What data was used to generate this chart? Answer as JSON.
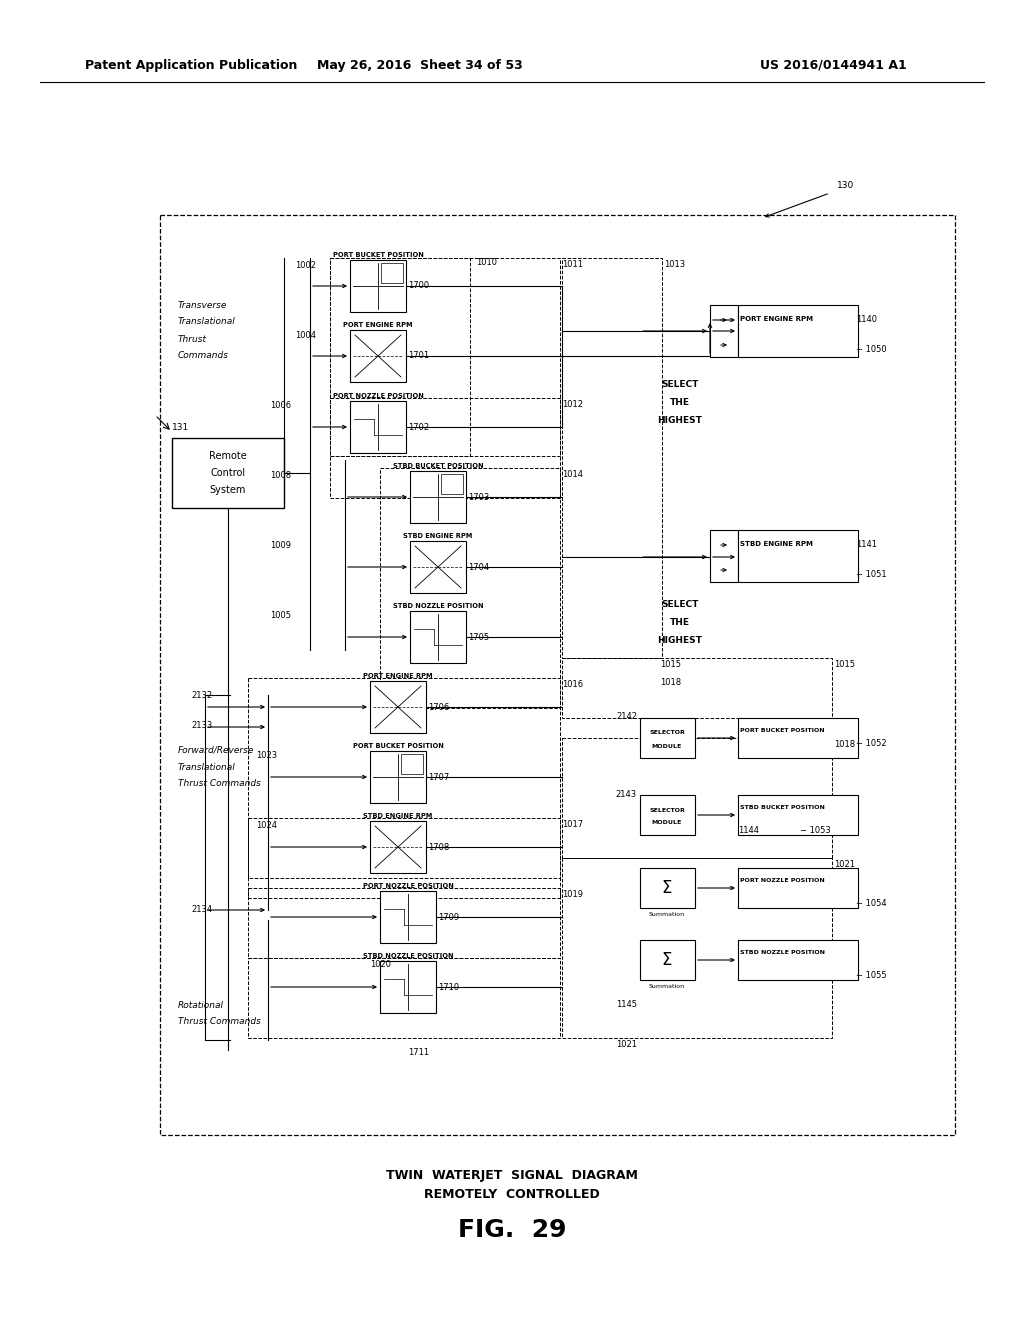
{
  "title_left": "Patent Application Publication",
  "title_mid": "May 26, 2016  Sheet 34 of 53",
  "title_right": "US 2016/0144941 A1",
  "fig_label": "FIG.  29",
  "caption1": "TWIN  WATERJET  SIGNAL  DIAGRAM",
  "caption2": "REMOTELY  CONTROLLED",
  "bg_color": "#ffffff"
}
